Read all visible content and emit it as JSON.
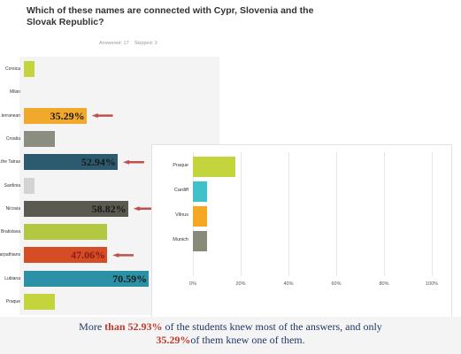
{
  "survey": {
    "title": "Which of these names are connected with Cypr, Slovenia and the Slovak Republic?",
    "answered": "Answered: 17",
    "skipped": "Skipped: 3"
  },
  "chart_data": [
    {
      "type": "bar",
      "orientation": "horizontal",
      "title": "Which of these names are connected with Cypr, Slovenia and the Slovak Republic?",
      "categories": [
        "Corsica",
        "Milan",
        "the ...terranean",
        "Croatia",
        "...the Tatras",
        "Sardinia",
        "Nicosia",
        "Bratislava",
        "The ...arpathians",
        "Lubiana",
        "Praque"
      ],
      "values": [
        5.88,
        0,
        35.29,
        17.65,
        52.94,
        5.88,
        58.82,
        47.06,
        47.06,
        70.59,
        17.65
      ],
      "bar_colors": [
        "#c3d43c",
        "#c3d43c",
        "#f0a92a",
        "#8b8d80",
        "#2c5a6e",
        "#d3d3d3",
        "#5a5a50",
        "#b3c740",
        "#d44d24",
        "#2a91a6",
        "#c3d43c"
      ],
      "annotations": [
        {
          "category": "the ...terranean",
          "text": "35.29%"
        },
        {
          "category": "...the Tatras",
          "text": "52.94%"
        },
        {
          "category": "Nicosia",
          "text": "58.82%"
        },
        {
          "category": "The ...arpathians",
          "text": "47.06%"
        },
        {
          "category": "Lubiana",
          "text": "70.59%"
        }
      ],
      "xlim": [
        0,
        100
      ]
    },
    {
      "type": "bar",
      "orientation": "horizontal",
      "categories": [
        "Praque",
        "Cardiff",
        "Vilnus",
        "Munich"
      ],
      "values": [
        17.65,
        5.88,
        5.88,
        5.88
      ],
      "bar_colors": [
        "#c3d43c",
        "#40c0c8",
        "#f5a623",
        "#8a8a7a"
      ],
      "x_ticks": [
        "0%",
        "20%",
        "40%",
        "60%",
        "80%",
        "100%"
      ],
      "xlim": [
        0,
        100
      ],
      "grid": true
    }
  ],
  "caption": {
    "part1": "More ",
    "than": "than ",
    "pct1": "52.93%",
    "part2": " of the students knew most of the answers, and only",
    "pct2": "35.29%",
    "part3": "of them knew one of them."
  },
  "colors": {
    "annotation_dark": "#1a1a1a",
    "annotation_light": "#f2f2f2",
    "annotation_red": "#8b1a1a",
    "arrow": "#c0504d",
    "caption_text": "#1f3864"
  }
}
